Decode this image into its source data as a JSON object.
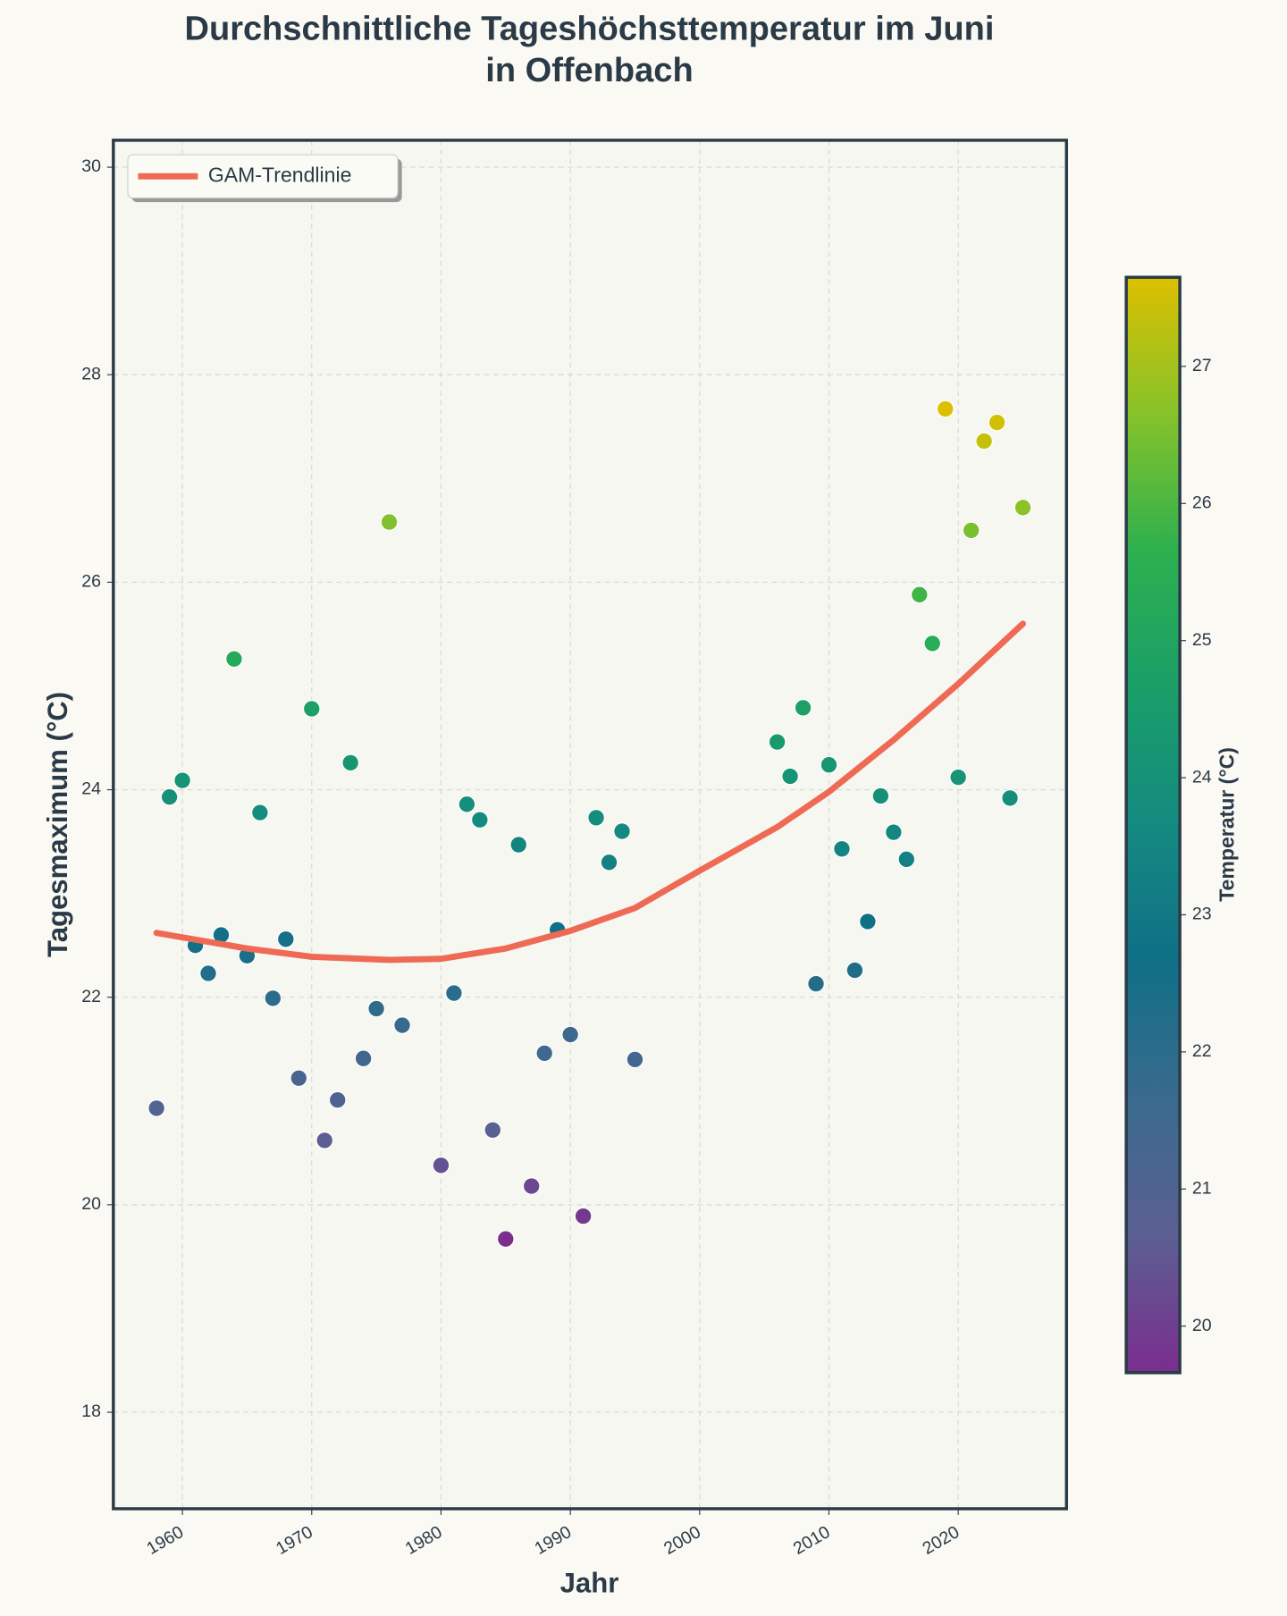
{
  "chart_data": {
    "type": "scatter",
    "title": [
      "Durchschnittliche Tageshöchsttemperatur im Juni",
      "in Offenbach"
    ],
    "xlabel": "Jahr",
    "ylabel": "Tagesmaximum (°C)",
    "xlim": [
      1954.66,
      2028.37
    ],
    "ylim": [
      17.07,
      30.26
    ],
    "xticks": [
      1960,
      1970,
      1980,
      1990,
      2000,
      2010,
      2020
    ],
    "yticks": [
      18,
      20,
      22,
      24,
      26,
      28,
      30
    ],
    "grid": true,
    "legend": "upper left",
    "series": [
      {
        "type": "scatter",
        "x": [
          1958,
          1959,
          1960,
          1961,
          1962,
          1963,
          1964,
          1965,
          1966,
          1967,
          1968,
          1969,
          1970,
          1971,
          1972,
          1973,
          1974,
          1975,
          1976,
          1977,
          1980,
          1981,
          1982,
          1983,
          1984,
          1985,
          1986,
          1987,
          1988,
          1989,
          1990,
          1991,
          1992,
          1993,
          1994,
          1995,
          2006,
          2007,
          2008,
          2009,
          2010,
          2011,
          2012,
          2013,
          2014,
          2015,
          2016,
          2017,
          2018,
          2019,
          2020,
          2021,
          2022,
          2023,
          2024,
          2025
        ],
        "values": [
          20.93,
          23.93,
          24.09,
          22.5,
          22.23,
          22.6,
          25.26,
          22.4,
          23.78,
          21.99,
          22.56,
          21.22,
          24.78,
          20.62,
          21.01,
          24.26,
          21.41,
          21.89,
          26.58,
          21.73,
          20.38,
          22.04,
          23.86,
          23.71,
          20.72,
          19.67,
          23.47,
          20.18,
          21.46,
          22.65,
          21.64,
          19.89,
          23.73,
          23.3,
          23.6,
          21.4,
          24.46,
          24.13,
          24.79,
          22.13,
          24.24,
          23.43,
          22.26,
          22.73,
          23.94,
          23.59,
          23.33,
          25.88,
          25.41,
          27.67,
          24.12,
          26.5,
          27.36,
          27.54,
          23.92,
          26.72
        ]
      },
      {
        "type": "line",
        "name": "GAM-Trendlinie",
        "color": "#ee6a55",
        "x": [
          1958,
          1965,
          1970,
          1976,
          1980,
          1985,
          1990,
          1995,
          2000,
          2006,
          2010,
          2015,
          2020,
          2025
        ],
        "values": [
          22.62,
          22.47,
          22.39,
          22.36,
          22.37,
          22.47,
          22.64,
          22.86,
          23.22,
          23.64,
          23.98,
          24.48,
          25.02,
          25.6
        ]
      }
    ],
    "colorbar": {
      "label": "Temperatur (°C)",
      "clim": [
        19.66,
        27.65
      ],
      "ticks": [
        20,
        21,
        22,
        23,
        24,
        25,
        26,
        27
      ],
      "colormap": [
        "#7b2d8e",
        "#5b5f92",
        "#3a6a8e",
        "#106f86",
        "#148a80",
        "#1a9e68",
        "#2db04f",
        "#86c22a",
        "#dcc000"
      ]
    }
  }
}
